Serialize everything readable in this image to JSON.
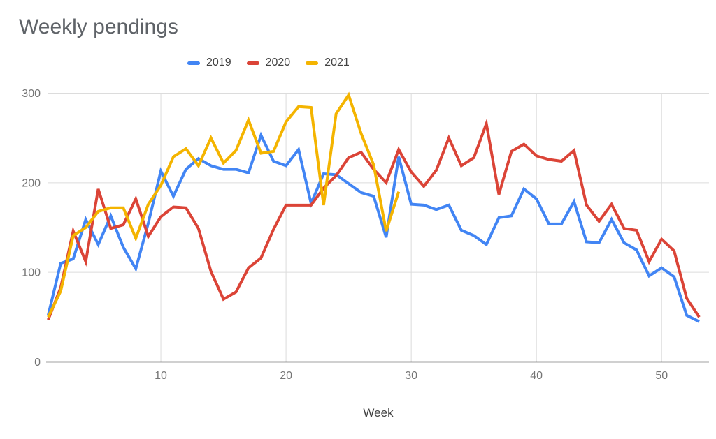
{
  "chart_data": {
    "type": "line",
    "title": "Weekly pendings",
    "xlabel": "Week",
    "x_start": 1,
    "xlim": [
      1,
      53
    ],
    "ylim": [
      0,
      300
    ],
    "y_ticks": [
      0,
      100,
      200,
      300
    ],
    "x_ticks": [
      10,
      20,
      30,
      40,
      50
    ],
    "grid": true,
    "legend_position": "top",
    "axis_color": "#424242",
    "gridline_color": "#dcdcdc",
    "tick_label_color": "#757575",
    "series": [
      {
        "name": "2019",
        "color": "#4285F4",
        "values": [
          52,
          110,
          115,
          159,
          131,
          163,
          128,
          104,
          155,
          213,
          185,
          215,
          227,
          219,
          215,
          215,
          211,
          253,
          224,
          219,
          237,
          177,
          210,
          209,
          199,
          189,
          185,
          139,
          229,
          176,
          175,
          170,
          175,
          147,
          141,
          131,
          161,
          163,
          193,
          182,
          154,
          154,
          179,
          134,
          133,
          159,
          133,
          125,
          96,
          105,
          95,
          52,
          45
        ]
      },
      {
        "name": "2020",
        "color": "#DB4437",
        "values": [
          47,
          83,
          146,
          112,
          193,
          149,
          153,
          182,
          140,
          162,
          173,
          172,
          149,
          101,
          70,
          78,
          105,
          116,
          148,
          175,
          175,
          175,
          194,
          208,
          228,
          234,
          215,
          200,
          237,
          212,
          196,
          214,
          250,
          219,
          228,
          266,
          187,
          235,
          243,
          230,
          226,
          224,
          236,
          175,
          157,
          176,
          149,
          147,
          112,
          137,
          124,
          71,
          50
        ]
      },
      {
        "name": "2021",
        "color": "#F4B400",
        "values": [
          50,
          79,
          141,
          150,
          168,
          172,
          172,
          138,
          176,
          197,
          229,
          238,
          219,
          250,
          222,
          236,
          270,
          233,
          235,
          268,
          285,
          284,
          175,
          277,
          298,
          255,
          220,
          146,
          190
        ]
      }
    ]
  }
}
